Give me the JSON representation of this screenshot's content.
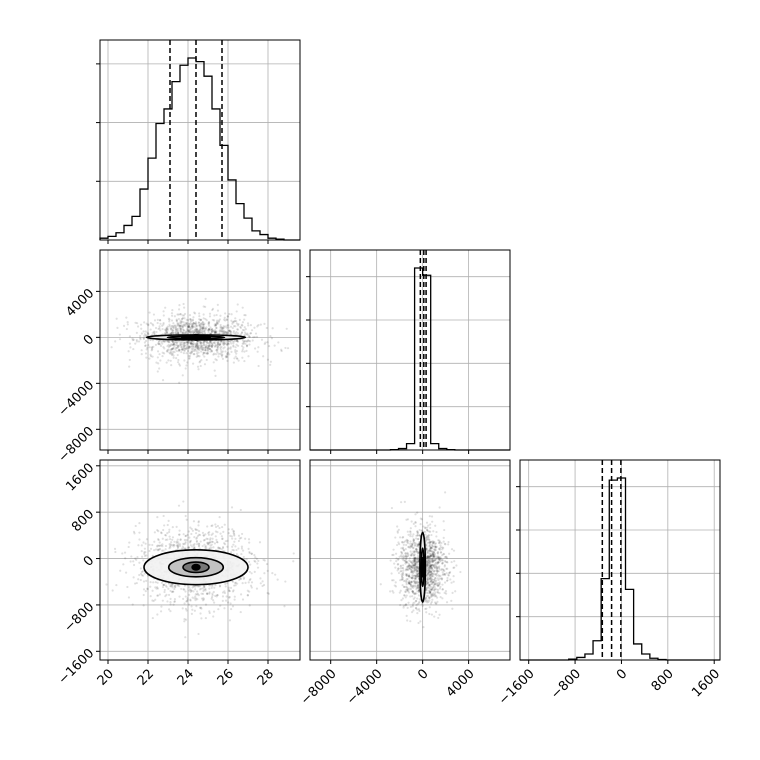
{
  "chart_data": {
    "type": "corner",
    "grid": true,
    "colors": {
      "points": "#000000",
      "lines": "#000000",
      "grid": "#b0b0b0",
      "background": "#ffffff"
    },
    "params": [
      {
        "range": [
          19.6,
          29.6
        ],
        "ticks": [
          20,
          22,
          24,
          26,
          28
        ],
        "tick_labels": [
          "20",
          "22",
          "24",
          "26",
          "28"
        ]
      },
      {
        "range": [
          -9800,
          7600
        ],
        "ticks": [
          -8000,
          -4000,
          0,
          4000
        ],
        "tick_labels": [
          "−8000",
          "−4000",
          "0",
          "4000"
        ]
      },
      {
        "range": [
          -1750,
          1700
        ],
        "ticks": [
          -1600,
          -800,
          0,
          800,
          1600
        ],
        "tick_labels": [
          "−1600",
          "−800",
          "0",
          "800",
          "1600"
        ]
      }
    ],
    "histograms": [
      {
        "param": 0,
        "bin_edges": [
          19.6,
          20.0,
          20.4,
          20.8,
          21.2,
          21.6,
          22.0,
          22.4,
          22.8,
          23.2,
          23.6,
          24.0,
          24.4,
          24.8,
          25.2,
          25.6,
          26.0,
          26.4,
          26.8,
          27.2,
          27.6,
          28.0,
          28.4,
          28.8,
          29.2,
          29.6
        ],
        "counts": [
          0.01,
          0.02,
          0.04,
          0.08,
          0.13,
          0.28,
          0.45,
          0.64,
          0.72,
          0.87,
          0.96,
          1.0,
          0.98,
          0.9,
          0.72,
          0.52,
          0.33,
          0.2,
          0.12,
          0.05,
          0.03,
          0.01,
          0.005,
          0.0,
          0.0
        ],
        "quantiles": [
          23.1,
          24.4,
          25.7
        ]
      },
      {
        "param": 1,
        "bin_edges": [
          -9800,
          -9100,
          -8400,
          -7700,
          -7000,
          -6300,
          -5600,
          -4900,
          -4200,
          -3500,
          -2800,
          -2100,
          -1400,
          -700,
          0,
          700,
          1400,
          2100,
          2800,
          3500,
          4200,
          4900,
          5600,
          6300,
          7000,
          7600
        ],
        "counts": [
          0,
          0,
          0,
          0,
          0,
          0,
          0,
          0,
          0,
          0,
          0.002,
          0.008,
          0.035,
          1.0,
          0.96,
          0.035,
          0.008,
          0.002,
          0,
          0,
          0,
          0,
          0,
          0,
          0
        ],
        "quantiles": [
          -200,
          100,
          300
        ]
      },
      {
        "param": 2,
        "bin_edges": [
          -1750,
          -1610,
          -1470,
          -1330,
          -1190,
          -1050,
          -910,
          -770,
          -630,
          -490,
          -350,
          -210,
          -70,
          70,
          210,
          350,
          490,
          630,
          770,
          910,
          1050,
          1190,
          1330,
          1470,
          1610,
          1700
        ],
        "counts": [
          0,
          0,
          0,
          0,
          0,
          0,
          0.004,
          0.012,
          0.028,
          0.09,
          0.38,
          0.84,
          0.85,
          0.33,
          0.075,
          0.028,
          0.008,
          0.002,
          0,
          0,
          0,
          0,
          0,
          0,
          0
        ],
        "quantiles": [
          -330,
          -170,
          -10
        ]
      }
    ],
    "scatter_panels": [
      {
        "x_param": 0,
        "y_param": 1,
        "mean": [
          24.4,
          0
        ],
        "std": [
          1.3,
          900
        ],
        "rho": 0.0,
        "n_points": 1300,
        "contours": [
          [
            1.9,
            0.24
          ],
          [
            1.1,
            0.12
          ],
          [
            0.55,
            0.06
          ]
        ]
      },
      {
        "x_param": 0,
        "y_param": 2,
        "mean": [
          24.4,
          -150
        ],
        "std": [
          1.3,
          300
        ],
        "rho": 0.0,
        "n_points": 1300,
        "contours": [
          [
            2.0,
            1.0
          ],
          [
            1.05,
            0.55
          ],
          [
            0.5,
            0.3
          ]
        ]
      },
      {
        "x_param": 1,
        "y_param": 2,
        "mean": [
          0,
          -150
        ],
        "std": [
          900,
          300
        ],
        "rho": 0.0,
        "n_points": 1300,
        "contours": [
          [
            0.26,
            2.0
          ],
          [
            0.13,
            1.1
          ],
          [
            0.06,
            0.55
          ]
        ]
      }
    ]
  }
}
